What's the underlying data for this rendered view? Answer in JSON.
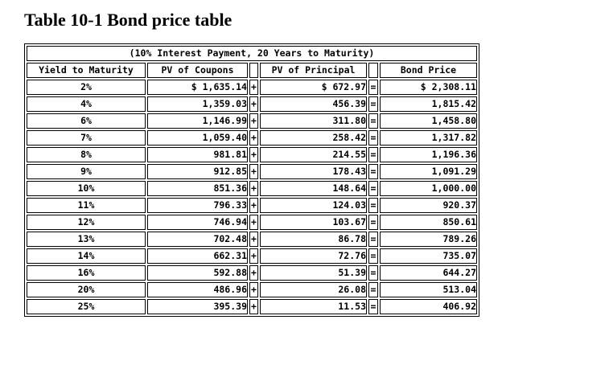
{
  "title": "Table 10-1 Bond price table",
  "table": {
    "caption": "(10% Interest Payment, 20 Years to Maturity)",
    "columns": {
      "yield": "Yield to Maturity",
      "pv_coupons": "PV of Coupons",
      "pv_principal": "PV of Principal",
      "bond_price": "Bond Price"
    },
    "operators": {
      "plus": "+",
      "equals": "="
    },
    "rows": [
      {
        "yield": "2%",
        "pv_coupons": "$ 1,635.14",
        "pv_principal": "$ 672.97",
        "bond_price": "$ 2,308.11"
      },
      {
        "yield": "4%",
        "pv_coupons": "1,359.03",
        "pv_principal": "456.39",
        "bond_price": "1,815.42"
      },
      {
        "yield": "6%",
        "pv_coupons": "1,146.99",
        "pv_principal": "311.80",
        "bond_price": "1,458.80"
      },
      {
        "yield": "7%",
        "pv_coupons": "1,059.40",
        "pv_principal": "258.42",
        "bond_price": "1,317.82"
      },
      {
        "yield": "8%",
        "pv_coupons": "981.81",
        "pv_principal": "214.55",
        "bond_price": "1,196.36"
      },
      {
        "yield": "9%",
        "pv_coupons": "912.85",
        "pv_principal": "178.43",
        "bond_price": "1,091.29"
      },
      {
        "yield": "10%",
        "pv_coupons": "851.36",
        "pv_principal": "148.64",
        "bond_price": "1,000.00"
      },
      {
        "yield": "11%",
        "pv_coupons": "796.33",
        "pv_principal": "124.03",
        "bond_price": "920.37"
      },
      {
        "yield": "12%",
        "pv_coupons": "746.94",
        "pv_principal": "103.67",
        "bond_price": "850.61"
      },
      {
        "yield": "13%",
        "pv_coupons": "702.48",
        "pv_principal": "86.78",
        "bond_price": "789.26"
      },
      {
        "yield": "14%",
        "pv_coupons": "662.31",
        "pv_principal": "72.76",
        "bond_price": "735.07"
      },
      {
        "yield": "16%",
        "pv_coupons": "592.88",
        "pv_principal": "51.39",
        "bond_price": "644.27"
      },
      {
        "yield": "20%",
        "pv_coupons": "486.96",
        "pv_principal": "26.08",
        "bond_price": "513.04"
      },
      {
        "yield": "25%",
        "pv_coupons": "395.39",
        "pv_principal": "11.53",
        "bond_price": "406.92"
      }
    ]
  }
}
